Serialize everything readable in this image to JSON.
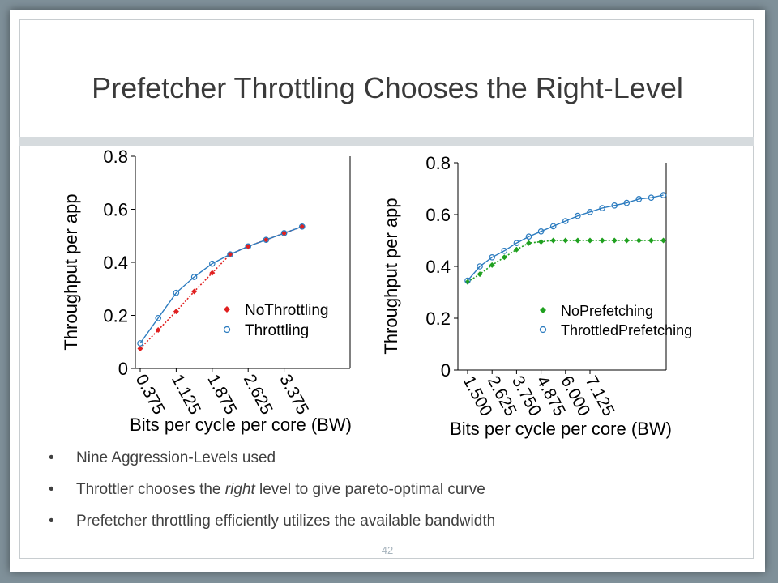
{
  "slide": {
    "title": "Prefetcher Throttling Chooses the Right-Level",
    "page_number": "42"
  },
  "bullets": [
    {
      "bullet": "•",
      "text": "Nine Aggression-Levels used"
    },
    {
      "bullet": "•",
      "pre": "Throttler chooses the ",
      "em": "right",
      "post": " level to give pareto-optimal curve"
    },
    {
      "bullet": "•",
      "text": "Prefetcher throttling efficiently utilizes the available bandwidth"
    }
  ],
  "chart_data": [
    {
      "type": "line",
      "xlabel": "Bits per cycle per core (BW)",
      "ylabel": "Throughput per app",
      "ylim": [
        0,
        0.8
      ],
      "yticks": [
        "0",
        "0.2",
        "0.4",
        "0.6",
        "0.8"
      ],
      "x": [
        0.375,
        0.75,
        1.125,
        1.5,
        1.875,
        2.25,
        2.625,
        3.0,
        3.375,
        3.75
      ],
      "xticks": [
        "0.375",
        "1.125",
        "1.875",
        "2.625",
        "3.375"
      ],
      "legend_position": "center-right",
      "series": [
        {
          "name": "NoThrottling",
          "color": "#e02020",
          "marker": "diamond",
          "line": "dotted",
          "values": [
            0.075,
            0.145,
            0.215,
            0.29,
            0.36,
            0.43,
            0.46,
            0.485,
            0.51,
            0.535
          ]
        },
        {
          "name": "Throttling",
          "color": "#2b7bbf",
          "marker": "circle",
          "line": "solid",
          "values": [
            0.095,
            0.19,
            0.285,
            0.345,
            0.395,
            0.43,
            0.46,
            0.485,
            0.51,
            0.535
          ]
        }
      ]
    },
    {
      "type": "line",
      "xlabel": "Bits per cycle per core (BW)",
      "ylabel": "Throughput per app",
      "ylim": [
        0,
        0.8
      ],
      "yticks": [
        "0",
        "0.2",
        "0.4",
        "0.6",
        "0.8"
      ],
      "x": [
        1.5,
        1.875,
        2.25,
        2.625,
        3.0,
        3.375,
        3.75,
        4.125,
        4.5,
        4.875,
        5.25,
        5.625,
        6.0,
        6.375,
        6.75,
        7.125,
        7.5
      ],
      "xticks": [
        "1.500",
        "2.625",
        "3.750",
        "4.875",
        "6.000",
        "7.125"
      ],
      "legend_position": "bottom-right",
      "series": [
        {
          "name": "NoPrefetching",
          "color": "#1fa01f",
          "marker": "diamond",
          "line": "dotted",
          "values": [
            0.34,
            0.37,
            0.405,
            0.435,
            0.465,
            0.49,
            0.495,
            0.5,
            0.5,
            0.5,
            0.5,
            0.5,
            0.5,
            0.5,
            0.5,
            0.5,
            0.5
          ]
        },
        {
          "name": "ThrottledPrefetching",
          "color": "#2b7bbf",
          "marker": "circle",
          "line": "solid",
          "values": [
            0.345,
            0.4,
            0.435,
            0.46,
            0.49,
            0.515,
            0.535,
            0.555,
            0.575,
            0.595,
            0.61,
            0.625,
            0.635,
            0.645,
            0.66,
            0.665,
            0.675
          ]
        }
      ]
    }
  ]
}
